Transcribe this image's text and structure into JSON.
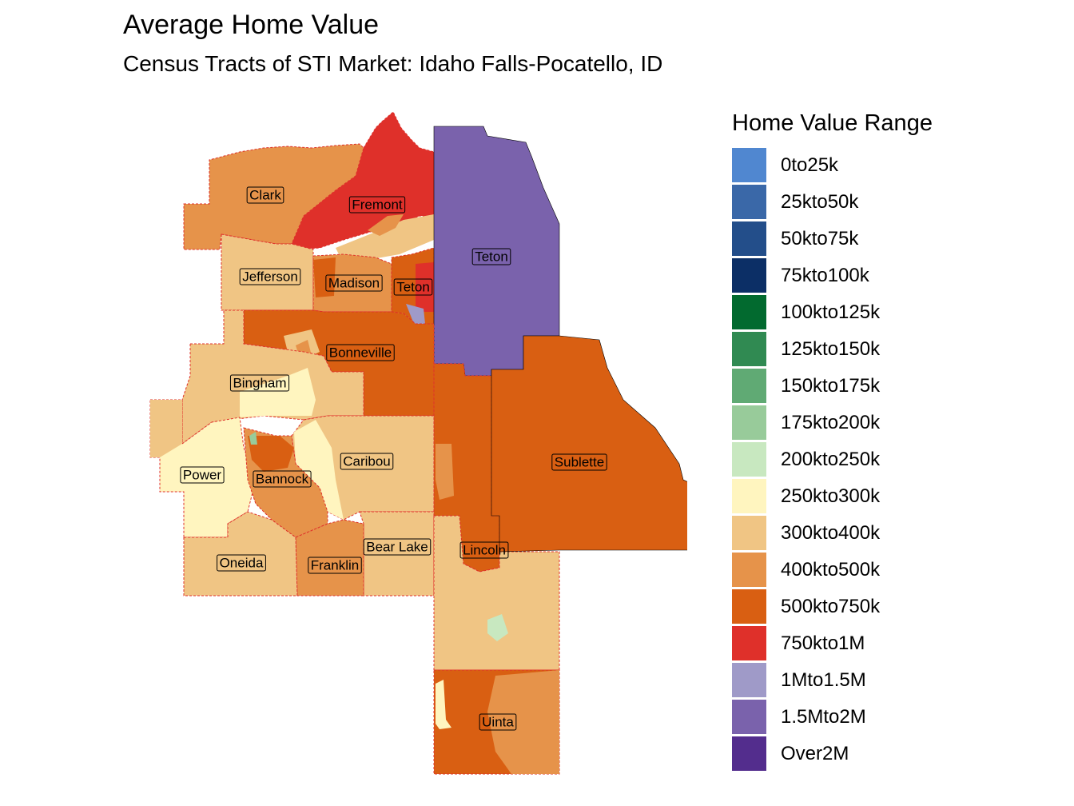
{
  "title": "Average Home Value",
  "subtitle": "Census Tracts of STI Market: Idaho Falls-Pocatello, ID",
  "legend": {
    "title": "Home Value Range",
    "items": [
      {
        "label": "0to25k",
        "color": "#5087d0"
      },
      {
        "label": "25kto50k",
        "color": "#3a68a8"
      },
      {
        "label": "50kto75k",
        "color": "#234e8a"
      },
      {
        "label": "75kto100k",
        "color": "#0c2f66"
      },
      {
        "label": "100kto125k",
        "color": "#026a2f"
      },
      {
        "label": "125kto150k",
        "color": "#308a52"
      },
      {
        "label": "150kto175k",
        "color": "#60aa74"
      },
      {
        "label": "175kto200k",
        "color": "#98cb9a"
      },
      {
        "label": "200kto250k",
        "color": "#c8e8c0"
      },
      {
        "label": "250kto300k",
        "color": "#fff5bf"
      },
      {
        "label": "300kto400k",
        "color": "#f0c584"
      },
      {
        "label": "400kto500k",
        "color": "#e6934a"
      },
      {
        "label": "500kto750k",
        "color": "#d95f12"
      },
      {
        "label": "750kto1M",
        "color": "#df302a"
      },
      {
        "label": "1Mto1.5M",
        "color": "#9f9ac8"
      },
      {
        "label": "1.5Mto2M",
        "color": "#7a62ac"
      },
      {
        "label": "Over2M",
        "color": "#532d8d"
      }
    ]
  },
  "counties": [
    {
      "name": "Clark",
      "range": "400kto500k"
    },
    {
      "name": "Fremont",
      "range": "750kto1M"
    },
    {
      "name": "Teton",
      "state": "WY",
      "range": "1.5Mto2M"
    },
    {
      "name": "Jefferson",
      "range": "300kto400k"
    },
    {
      "name": "Madison",
      "range": "400kto500k"
    },
    {
      "name": "Teton",
      "state": "ID",
      "range": "500kto750k"
    },
    {
      "name": "Bonneville",
      "range": "500kto750k"
    },
    {
      "name": "Bingham",
      "range": "300kto400k"
    },
    {
      "name": "Caribou",
      "range": "300kto400k"
    },
    {
      "name": "Power",
      "range": "250kto300k"
    },
    {
      "name": "Bannock",
      "range": "400kto500k"
    },
    {
      "name": "Sublette",
      "range": "500kto750k"
    },
    {
      "name": "Bear Lake",
      "range": "300kto400k"
    },
    {
      "name": "Lincoln",
      "range": "300kto400k"
    },
    {
      "name": "Oneida",
      "range": "300kto400k"
    },
    {
      "name": "Franklin",
      "range": "400kto500k"
    },
    {
      "name": "Uinta",
      "range": "400kto500k"
    }
  ]
}
